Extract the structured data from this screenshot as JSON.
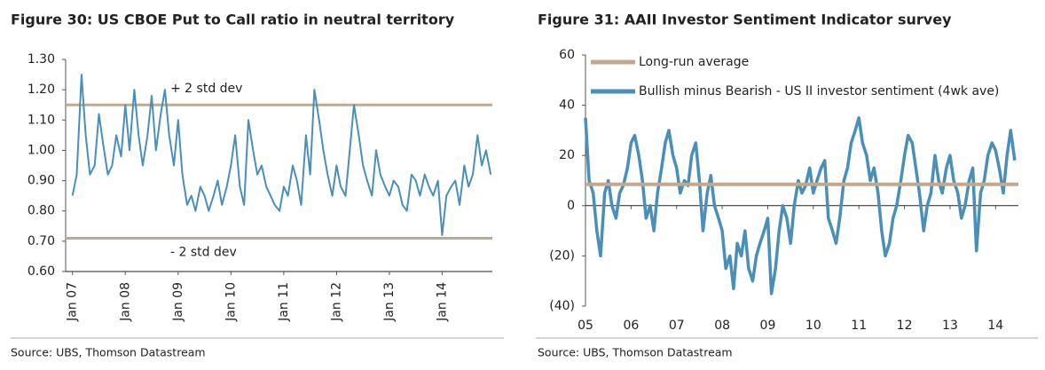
{
  "chart_data": [
    {
      "type": "line",
      "title": "Figure 30: US CBOE Put to Call ratio in neutral territory",
      "source": "Source:  UBS, Thomson Datastream",
      "x": [
        2007.0,
        2007.08,
        2007.17,
        2007.25,
        2007.33,
        2007.42,
        2007.5,
        2007.58,
        2007.67,
        2007.75,
        2007.83,
        2007.92,
        2008.0,
        2008.08,
        2008.17,
        2008.25,
        2008.33,
        2008.42,
        2008.5,
        2008.58,
        2008.67,
        2008.75,
        2008.83,
        2008.92,
        2009.0,
        2009.08,
        2009.17,
        2009.25,
        2009.33,
        2009.42,
        2009.5,
        2009.58,
        2009.67,
        2009.75,
        2009.83,
        2009.92,
        2010.0,
        2010.08,
        2010.17,
        2010.25,
        2010.33,
        2010.42,
        2010.5,
        2010.58,
        2010.67,
        2010.75,
        2010.83,
        2010.92,
        2011.0,
        2011.08,
        2011.17,
        2011.25,
        2011.33,
        2011.42,
        2011.5,
        2011.58,
        2011.67,
        2011.75,
        2011.83,
        2011.92,
        2012.0,
        2012.08,
        2012.17,
        2012.25,
        2012.33,
        2012.42,
        2012.5,
        2012.58,
        2012.67,
        2012.75,
        2012.83,
        2012.92,
        2013.0,
        2013.08,
        2013.17,
        2013.25,
        2013.33,
        2013.42,
        2013.5,
        2013.58,
        2013.67,
        2013.75,
        2013.83,
        2013.92,
        2014.0,
        2014.08,
        2014.17,
        2014.25,
        2014.33,
        2014.42,
        2014.5,
        2014.58,
        2014.67,
        2014.75,
        2014.83,
        2014.92
      ],
      "series": [
        {
          "color": "#4a8fb8",
          "values": [
            0.85,
            0.92,
            1.25,
            1.05,
            0.92,
            0.95,
            1.12,
            1.02,
            0.92,
            0.95,
            1.05,
            0.98,
            1.15,
            1.0,
            1.2,
            1.05,
            0.95,
            1.05,
            1.18,
            1.0,
            1.12,
            1.2,
            1.05,
            0.95,
            1.1,
            0.92,
            0.82,
            0.85,
            0.8,
            0.88,
            0.85,
            0.8,
            0.85,
            0.9,
            0.82,
            0.88,
            0.95,
            1.05,
            0.88,
            0.82,
            1.1,
            1.0,
            0.92,
            0.95,
            0.88,
            0.85,
            0.82,
            0.8,
            0.88,
            0.85,
            0.95,
            0.9,
            0.82,
            1.05,
            0.92,
            1.2,
            1.1,
            1.0,
            0.92,
            0.85,
            0.95,
            0.88,
            0.85,
            1.0,
            1.15,
            1.05,
            0.95,
            0.9,
            0.85,
            1.0,
            0.92,
            0.88,
            0.85,
            0.9,
            0.88,
            0.82,
            0.8,
            0.92,
            0.9,
            0.85,
            0.92,
            0.88,
            0.85,
            0.9,
            0.72,
            0.85,
            0.88,
            0.9,
            0.82,
            0.95,
            0.88,
            0.92,
            1.05,
            0.95,
            1.0,
            0.92
          ]
        }
      ],
      "reference_lines": [
        {
          "value": 1.15,
          "label": "+ 2 std dev",
          "color": "#c4a88e"
        },
        {
          "value": 0.71,
          "label": "- 2 std dev",
          "color": "#c4a88e"
        }
      ],
      "xlim": [
        2006.87,
        2014.95
      ],
      "xticks": [
        {
          "value": 2007,
          "label": "Jan 07"
        },
        {
          "value": 2008,
          "label": "Jan 08"
        },
        {
          "value": 2009,
          "label": "Jan 09"
        },
        {
          "value": 2010,
          "label": "Jan 10"
        },
        {
          "value": 2011,
          "label": "Jan 11"
        },
        {
          "value": 2012,
          "label": "Jan 12"
        },
        {
          "value": 2013,
          "label": "Jan 13"
        },
        {
          "value": 2014,
          "label": "Jan 14"
        }
      ],
      "ylim": [
        0.6,
        1.3
      ],
      "yticks": [
        {
          "value": 0.6,
          "label": "0.60"
        },
        {
          "value": 0.7,
          "label": "0.70"
        },
        {
          "value": 0.8,
          "label": "0.80"
        },
        {
          "value": 0.9,
          "label": "0.90"
        },
        {
          "value": 1.0,
          "label": "1.00"
        },
        {
          "value": 1.1,
          "label": "1.10"
        },
        {
          "value": 1.2,
          "label": "1.20"
        },
        {
          "value": 1.3,
          "label": "1.30"
        }
      ],
      "zero_line": false,
      "grid": false
    },
    {
      "type": "line",
      "title": "Figure 31: AAII Investor Sentiment Indicator survey",
      "source": "Source:  UBS, Thomson Datastream",
      "x": [
        2005.0,
        2005.08,
        2005.17,
        2005.25,
        2005.33,
        2005.42,
        2005.5,
        2005.58,
        2005.67,
        2005.75,
        2005.83,
        2005.92,
        2006.0,
        2006.08,
        2006.17,
        2006.25,
        2006.33,
        2006.42,
        2006.5,
        2006.58,
        2006.67,
        2006.75,
        2006.83,
        2006.92,
        2007.0,
        2007.08,
        2007.17,
        2007.25,
        2007.33,
        2007.42,
        2007.5,
        2007.58,
        2007.67,
        2007.75,
        2007.83,
        2007.92,
        2008.0,
        2008.08,
        2008.17,
        2008.25,
        2008.33,
        2008.42,
        2008.5,
        2008.58,
        2008.67,
        2008.75,
        2008.83,
        2008.92,
        2009.0,
        2009.08,
        2009.17,
        2009.25,
        2009.33,
        2009.42,
        2009.5,
        2009.58,
        2009.67,
        2009.75,
        2009.83,
        2009.92,
        2010.0,
        2010.08,
        2010.17,
        2010.25,
        2010.33,
        2010.42,
        2010.5,
        2010.58,
        2010.67,
        2010.75,
        2010.83,
        2010.92,
        2011.0,
        2011.08,
        2011.17,
        2011.25,
        2011.33,
        2011.42,
        2011.5,
        2011.58,
        2011.67,
        2011.75,
        2011.83,
        2011.92,
        2012.0,
        2012.08,
        2012.17,
        2012.25,
        2012.33,
        2012.42,
        2012.5,
        2012.58,
        2012.67,
        2012.75,
        2012.83,
        2012.92,
        2013.0,
        2013.08,
        2013.17,
        2013.25,
        2013.33,
        2013.42,
        2013.5,
        2013.58,
        2013.67,
        2013.75,
        2013.83,
        2013.92,
        2014.0,
        2014.08,
        2014.17,
        2014.25,
        2014.33,
        2014.42
      ],
      "series": [
        {
          "name": "Bullish minus Bearish - US II investor sentiment (4wk ave)",
          "color": "#4a8fb8",
          "values": [
            35,
            10,
            5,
            -10,
            -20,
            5,
            10,
            0,
            -5,
            5,
            8,
            15,
            25,
            28,
            20,
            10,
            -5,
            0,
            -10,
            5,
            15,
            25,
            30,
            20,
            15,
            5,
            10,
            8,
            20,
            25,
            10,
            -10,
            5,
            12,
            0,
            -5,
            -10,
            -25,
            -20,
            -33,
            -15,
            -20,
            -10,
            -25,
            -30,
            -20,
            -15,
            -10,
            -5,
            -35,
            -25,
            -10,
            0,
            -5,
            -15,
            0,
            10,
            5,
            8,
            15,
            5,
            10,
            15,
            18,
            -5,
            -10,
            -15,
            -5,
            10,
            15,
            25,
            30,
            35,
            25,
            20,
            10,
            15,
            5,
            -10,
            -20,
            -15,
            -5,
            0,
            10,
            20,
            28,
            25,
            15,
            5,
            -10,
            0,
            5,
            20,
            10,
            5,
            15,
            20,
            10,
            5,
            -5,
            0,
            10,
            15,
            -18,
            5,
            10,
            20,
            25,
            22,
            15,
            5,
            20,
            30,
            18
          ]
        }
      ],
      "reference_lines": [
        {
          "value": 8.5,
          "name": "Long-run average",
          "color": "#c4a88e"
        }
      ],
      "legend": "upper left",
      "xlim": [
        2005,
        2014.5
      ],
      "xticks": [
        {
          "value": 2005,
          "label": "05"
        },
        {
          "value": 2006,
          "label": "06"
        },
        {
          "value": 2007,
          "label": "07"
        },
        {
          "value": 2008,
          "label": "08"
        },
        {
          "value": 2009,
          "label": "09"
        },
        {
          "value": 2010,
          "label": "10"
        },
        {
          "value": 2011,
          "label": "11"
        },
        {
          "value": 2012,
          "label": "12"
        },
        {
          "value": 2013,
          "label": "13"
        },
        {
          "value": 2014,
          "label": "14"
        }
      ],
      "ylim": [
        -40,
        60
      ],
      "yticks": [
        {
          "value": -40,
          "label": "(40)"
        },
        {
          "value": -20,
          "label": "(20)"
        },
        0,
        20,
        40,
        60
      ],
      "zero_line": true,
      "grid": false
    }
  ]
}
